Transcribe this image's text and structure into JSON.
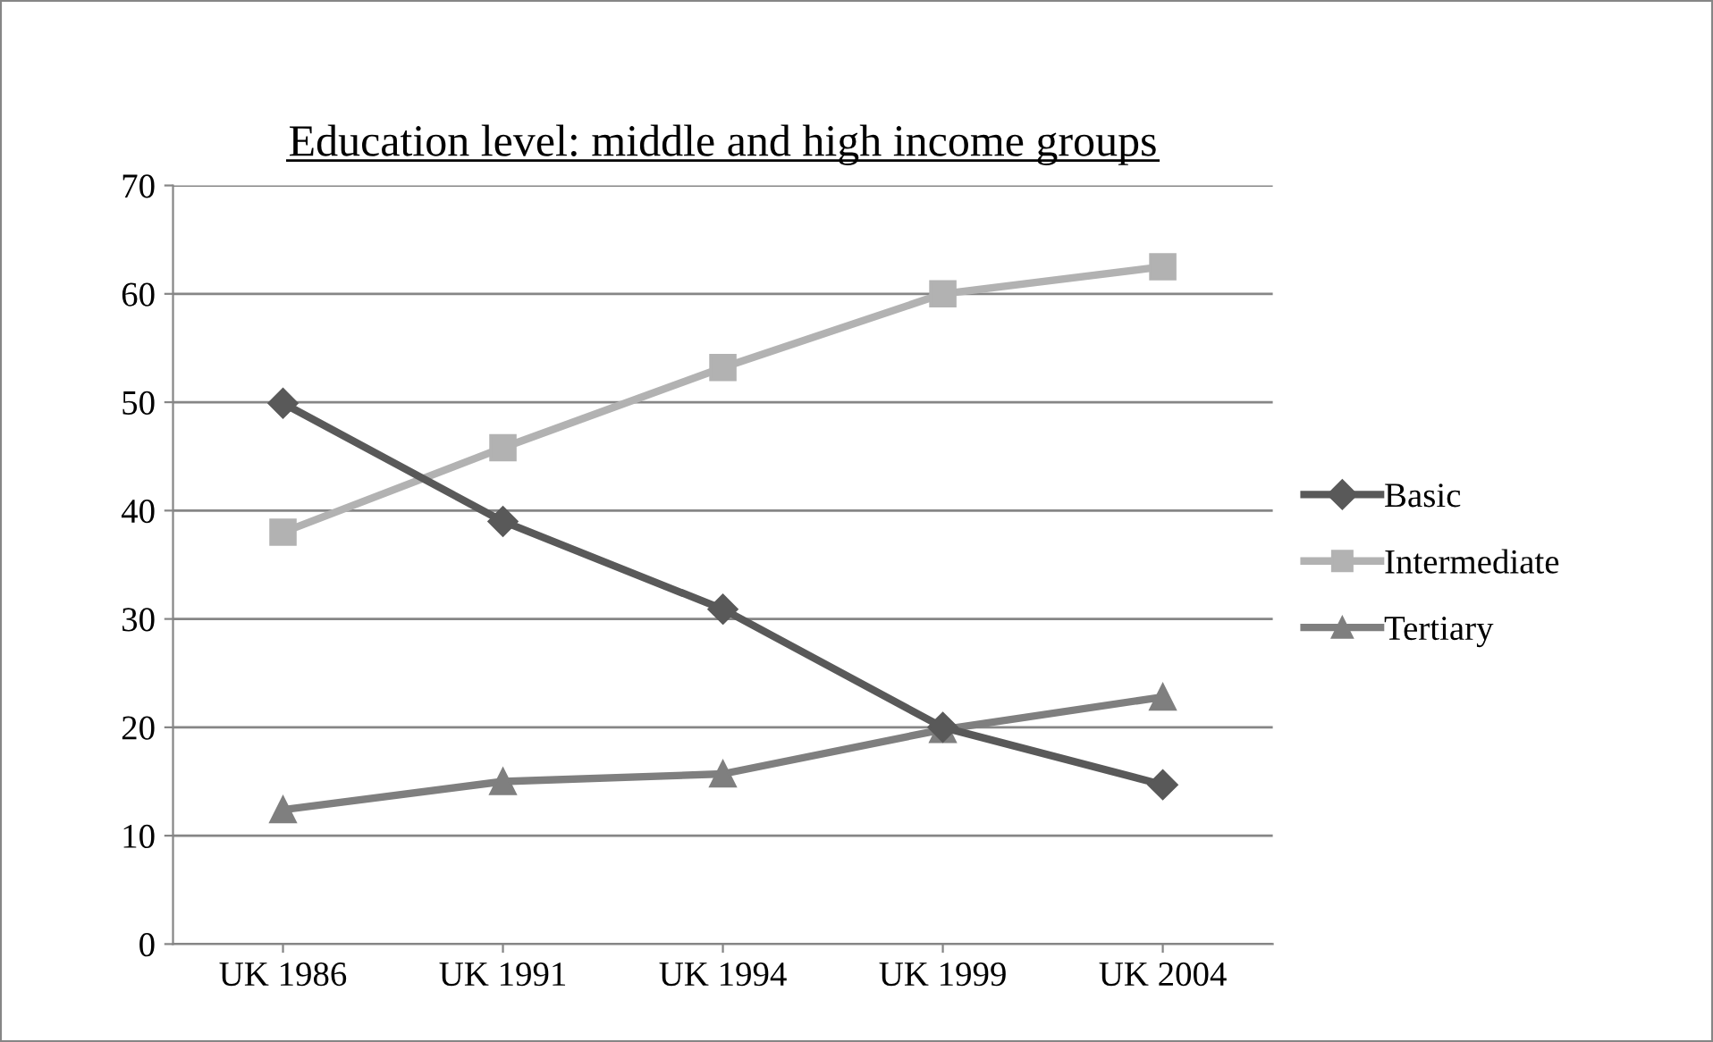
{
  "chart_data": {
    "type": "line",
    "title": "Education level: middle and high income groups",
    "categories": [
      "UK 1986",
      "UK 1991",
      "UK 1994",
      "UK 1999",
      "UK 2004"
    ],
    "series": [
      {
        "name": "Basic",
        "color": "#595959",
        "marker": "diamond",
        "values": [
          49.9,
          39.0,
          30.9,
          20.0,
          14.7
        ]
      },
      {
        "name": "Intermediate",
        "color": "#b2b2b2",
        "marker": "square",
        "values": [
          38.0,
          45.8,
          53.2,
          60.0,
          62.5
        ]
      },
      {
        "name": "Tertiary",
        "color": "#7f7f7f",
        "marker": "triangle",
        "values": [
          12.4,
          15.0,
          15.7,
          19.8,
          22.8
        ]
      }
    ],
    "ylim": [
      0,
      70
    ],
    "yticks": [
      0,
      10,
      20,
      30,
      40,
      50,
      60,
      70
    ],
    "grid": "y",
    "legend": "right",
    "line_style": "solid"
  }
}
